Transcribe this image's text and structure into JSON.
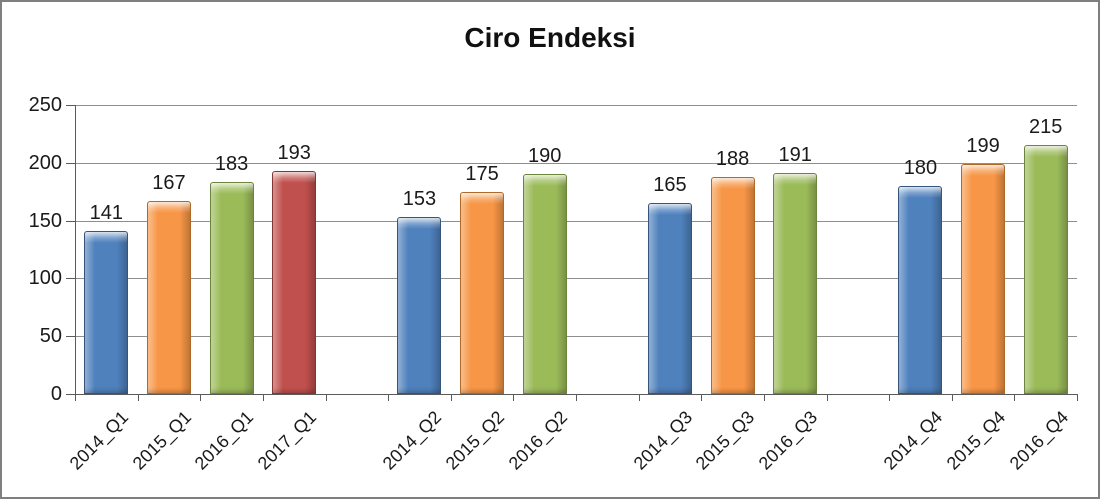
{
  "chart_data": {
    "type": "bar",
    "title": "Ciro Endeksi",
    "xlabel": "",
    "ylabel": "",
    "ylim": [
      0,
      250
    ],
    "yticks": [
      0,
      50,
      100,
      150,
      200,
      250
    ],
    "grid": true,
    "legend": "none",
    "value_labels_shown": true,
    "bar_groups": [
      [
        {
          "category": "2014_Q1",
          "value": 141,
          "color": "blue"
        },
        {
          "category": "2015_Q1",
          "value": 167,
          "color": "orange"
        },
        {
          "category": "2016_Q1",
          "value": 183,
          "color": "green"
        },
        {
          "category": "2017_Q1",
          "value": 193,
          "color": "red"
        }
      ],
      [
        {
          "category": "2014_Q2",
          "value": 153,
          "color": "blue"
        },
        {
          "category": "2015_Q2",
          "value": 175,
          "color": "orange"
        },
        {
          "category": "2016_Q2",
          "value": 190,
          "color": "green"
        }
      ],
      [
        {
          "category": "2014_Q3",
          "value": 165,
          "color": "blue"
        },
        {
          "category": "2015_Q3",
          "value": 188,
          "color": "orange"
        },
        {
          "category": "2016_Q3",
          "value": 191,
          "color": "green"
        }
      ],
      [
        {
          "category": "2014_Q4",
          "value": 180,
          "color": "blue"
        },
        {
          "category": "2015_Q4",
          "value": 199,
          "color": "orange"
        },
        {
          "category": "2016_Q4",
          "value": 215,
          "color": "green"
        }
      ]
    ],
    "palette": {
      "blue": {
        "fill": "#4F81BD",
        "border": "#36557D"
      },
      "orange": {
        "fill": "#F79646",
        "border": "#AD6A29"
      },
      "green": {
        "fill": "#9BBB59",
        "border": "#6C853C"
      },
      "red": {
        "fill": "#C0504D",
        "border": "#843634"
      }
    },
    "frame_border_color": "#7f7f7f",
    "gridline_color": "#8e8e8e",
    "axis_color": "#5a5a5a"
  }
}
